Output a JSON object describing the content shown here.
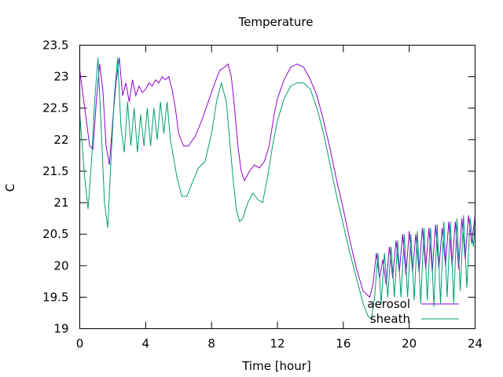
{
  "chart_data": {
    "type": "line",
    "title": "Temperature",
    "xlabel": "Time [hour]",
    "ylabel": "C",
    "xlim": [
      0,
      24
    ],
    "ylim": [
      19,
      23.5
    ],
    "xticks": [
      0,
      4,
      8,
      12,
      16,
      20,
      24
    ],
    "yticks": [
      19,
      19.5,
      20,
      20.5,
      21,
      21.5,
      22,
      22.5,
      23,
      23.5
    ],
    "legend_position": "bottom-right",
    "grid": false,
    "series": [
      {
        "name": "aerosol",
        "color": "#9400d3",
        "x": [
          0,
          0.3,
          0.6,
          0.8,
          1.0,
          1.2,
          1.4,
          1.6,
          1.8,
          2.0,
          2.2,
          2.4,
          2.6,
          2.8,
          3.0,
          3.2,
          3.4,
          3.6,
          3.8,
          4.0,
          4.2,
          4.4,
          4.6,
          4.8,
          5.0,
          5.2,
          5.4,
          5.6,
          5.8,
          6.0,
          6.3,
          6.6,
          7.0,
          7.4,
          7.8,
          8.2,
          8.5,
          8.8,
          9.0,
          9.2,
          9.4,
          9.6,
          9.8,
          10.0,
          10.3,
          10.6,
          10.9,
          11.2,
          11.5,
          11.8,
          12.0,
          12.4,
          12.8,
          13.2,
          13.6,
          14.0,
          14.4,
          14.8,
          15.2,
          15.6,
          16.0,
          16.4,
          16.8,
          17.2,
          17.6,
          17.8,
          18.0,
          18.2,
          18.4,
          18.6,
          18.8,
          19.0,
          19.2,
          19.4,
          19.6,
          19.8,
          20.0,
          20.2,
          20.4,
          20.6,
          20.8,
          21.0,
          21.2,
          21.4,
          21.6,
          21.8,
          22.0,
          22.2,
          22.4,
          22.6,
          22.8,
          23.0,
          23.2,
          23.4,
          23.6,
          23.8,
          24.0
        ],
        "y": [
          23.1,
          22.5,
          21.9,
          21.85,
          22.6,
          23.2,
          22.8,
          21.9,
          21.6,
          22.3,
          22.9,
          23.3,
          22.7,
          22.9,
          22.6,
          22.95,
          22.7,
          22.85,
          22.75,
          22.8,
          22.9,
          22.85,
          22.95,
          22.9,
          23.0,
          22.95,
          23.0,
          22.8,
          22.5,
          22.1,
          21.9,
          21.9,
          22.05,
          22.3,
          22.6,
          22.9,
          23.1,
          23.15,
          23.2,
          23.0,
          22.5,
          21.9,
          21.5,
          21.35,
          21.5,
          21.6,
          21.55,
          21.65,
          21.9,
          22.4,
          22.65,
          22.95,
          23.15,
          23.2,
          23.15,
          22.95,
          22.7,
          22.3,
          21.85,
          21.35,
          20.9,
          20.4,
          19.95,
          19.6,
          19.5,
          19.7,
          20.2,
          19.8,
          20.1,
          19.7,
          20.3,
          19.8,
          20.4,
          19.9,
          20.5,
          19.85,
          20.55,
          19.9,
          20.5,
          19.9,
          20.6,
          19.95,
          20.6,
          19.9,
          20.65,
          19.95,
          20.6,
          20.0,
          20.7,
          20.0,
          20.7,
          19.95,
          20.75,
          20.1,
          20.8,
          20.35,
          20.8
        ]
      },
      {
        "name": "sheath",
        "color": "#009e73",
        "x": [
          0,
          0.3,
          0.5,
          0.7,
          0.9,
          1.1,
          1.3,
          1.5,
          1.7,
          1.9,
          2.1,
          2.3,
          2.5,
          2.7,
          2.9,
          3.1,
          3.3,
          3.5,
          3.7,
          3.9,
          4.1,
          4.3,
          4.5,
          4.7,
          4.9,
          5.1,
          5.3,
          5.5,
          5.7,
          5.9,
          6.2,
          6.5,
          6.8,
          7.2,
          7.6,
          8.0,
          8.3,
          8.6,
          8.9,
          9.1,
          9.3,
          9.5,
          9.7,
          9.9,
          10.2,
          10.5,
          10.8,
          11.1,
          11.4,
          11.7,
          12.0,
          12.4,
          12.8,
          13.2,
          13.6,
          14.0,
          14.4,
          14.8,
          15.2,
          15.6,
          16.0,
          16.4,
          16.8,
          17.2,
          17.5,
          17.7,
          17.9,
          18.1,
          18.3,
          18.5,
          18.7,
          18.9,
          19.1,
          19.3,
          19.5,
          19.7,
          19.9,
          20.1,
          20.3,
          20.5,
          20.7,
          20.9,
          21.1,
          21.3,
          21.5,
          21.7,
          21.9,
          22.1,
          22.3,
          22.5,
          22.7,
          22.9,
          23.1,
          23.3,
          23.5,
          23.7,
          23.9,
          24.0
        ],
        "y": [
          22.4,
          21.4,
          20.9,
          21.6,
          22.6,
          23.3,
          22.2,
          21.0,
          20.6,
          21.7,
          22.7,
          23.3,
          22.2,
          21.8,
          22.6,
          21.9,
          22.5,
          21.8,
          22.4,
          21.9,
          22.5,
          21.9,
          22.5,
          22.0,
          22.6,
          22.1,
          22.6,
          22.0,
          21.7,
          21.4,
          21.1,
          21.1,
          21.3,
          21.55,
          21.65,
          22.1,
          22.6,
          22.9,
          22.6,
          22.0,
          21.4,
          20.9,
          20.7,
          20.75,
          21.0,
          21.15,
          21.05,
          21.0,
          21.4,
          21.9,
          22.3,
          22.65,
          22.85,
          22.9,
          22.9,
          22.8,
          22.5,
          22.1,
          21.6,
          21.1,
          20.65,
          20.2,
          19.8,
          19.4,
          19.2,
          19.15,
          19.5,
          20.2,
          19.4,
          20.2,
          19.5,
          20.3,
          19.5,
          20.4,
          19.5,
          20.5,
          19.5,
          20.5,
          19.45,
          20.55,
          19.4,
          20.6,
          19.45,
          20.6,
          19.35,
          20.65,
          19.4,
          20.7,
          19.5,
          20.7,
          19.4,
          20.75,
          19.6,
          20.8,
          19.65,
          20.75,
          20.3,
          20.7
        ]
      }
    ]
  }
}
